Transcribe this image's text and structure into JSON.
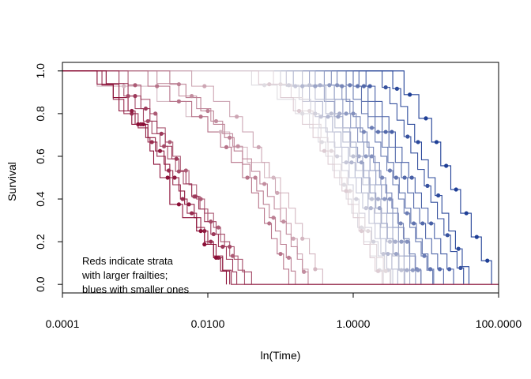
{
  "chart_data": {
    "type": "line",
    "xlabel": "ln(Time)",
    "ylabel": "Survival",
    "x_scale": "log10",
    "xlim": [
      0.0001,
      100
    ],
    "ylim": [
      0,
      1
    ],
    "x_ticks": [
      "0.0001",
      "0.0100",
      "1.0000",
      "100.0000"
    ],
    "y_ticks": [
      "0.0",
      "0.2",
      "0.4",
      "0.6",
      "0.8",
      "1.0"
    ],
    "annotation_lines": [
      "Reds indicate strata",
      "with larger frailties;",
      "blues with smaller ones"
    ],
    "grid": false,
    "legend": "none",
    "color_scale": {
      "low_frailty": "#1f3f96",
      "mid": "#e6e1e4",
      "high_frailty": "#8b0f37"
    },
    "series": [
      {
        "frailty": 1.0,
        "times": [
          0.0003,
          0.0005,
          0.0006,
          0.0009,
          0.0015,
          0.0016,
          0.0018,
          0.0022,
          0.003,
          0.003,
          0.0045,
          0.007,
          0.009,
          0.012,
          0.015,
          0.018
        ],
        "censored": [
          0.0011,
          0.0013,
          0.0028,
          0.004,
          0.008,
          0.009,
          0.013,
          0.02
        ]
      },
      {
        "frailty": 0.97,
        "times": [
          0.0004,
          0.0006,
          0.0008,
          0.001,
          0.0014,
          0.0019,
          0.0025,
          0.003,
          0.004,
          0.0048,
          0.0065,
          0.008,
          0.01,
          0.013,
          0.016,
          0.02
        ],
        "censored": [
          0.0009,
          0.0012,
          0.0022,
          0.0035,
          0.0055,
          0.009,
          0.014
        ]
      },
      {
        "frailty": 0.93,
        "times": [
          0.00035,
          0.0005,
          0.0007,
          0.0011,
          0.0015,
          0.002,
          0.0026,
          0.0033,
          0.0042,
          0.0052,
          0.007,
          0.009,
          0.012,
          0.016,
          0.021
        ],
        "censored": [
          0.0009,
          0.0017,
          0.0029,
          0.0045,
          0.006,
          0.011
        ]
      },
      {
        "frailty": 0.9,
        "times": [
          0.0006,
          0.0008,
          0.0012,
          0.0016,
          0.002,
          0.0026,
          0.0032,
          0.004,
          0.005,
          0.006,
          0.0075,
          0.009,
          0.011,
          0.014,
          0.018,
          0.022,
          0.025
        ],
        "censored": [
          0.001,
          0.0014,
          0.0023,
          0.0037,
          0.0068,
          0.012,
          0.016
        ]
      },
      {
        "frailty": 0.86,
        "times": [
          0.0004,
          0.0007,
          0.001,
          0.0013,
          0.0017,
          0.0022,
          0.0028,
          0.0036,
          0.0046,
          0.006,
          0.0078,
          0.01,
          0.013,
          0.017,
          0.023,
          0.03,
          0.04
        ],
        "censored": [
          0.0008,
          0.0015,
          0.0025,
          0.004,
          0.0065,
          0.011,
          0.02,
          0.05
        ]
      },
      {
        "frailty": 0.82,
        "times": [
          0.0008,
          0.0012,
          0.0016,
          0.002,
          0.0026,
          0.0033,
          0.0042,
          0.0055,
          0.007,
          0.009,
          0.012,
          0.015,
          0.02,
          0.026,
          0.032
        ],
        "censored": [
          0.001,
          0.0019,
          0.003,
          0.005,
          0.008,
          0.014,
          0.022
        ]
      },
      {
        "frailty": 0.76,
        "times": [
          0.0015,
          0.003,
          0.006,
          0.01,
          0.015,
          0.021,
          0.03,
          0.04,
          0.05,
          0.06,
          0.075,
          0.09,
          0.11,
          0.13
        ],
        "censored": [
          0.002,
          0.004,
          0.008,
          0.018,
          0.035,
          0.07,
          0.1
        ]
      },
      {
        "frailty": 0.73,
        "times": [
          0.003,
          0.005,
          0.008,
          0.012,
          0.017,
          0.023,
          0.03,
          0.038,
          0.047,
          0.058,
          0.07,
          0.085,
          0.1,
          0.12,
          0.14,
          0.16
        ],
        "censored": [
          0.004,
          0.01,
          0.02,
          0.045,
          0.08,
          0.13
        ]
      },
      {
        "frailty": 0.7,
        "times": [
          0.002,
          0.004,
          0.007,
          0.011,
          0.016,
          0.022,
          0.03,
          0.04,
          0.052,
          0.066,
          0.082,
          0.1,
          0.12,
          0.14,
          0.17,
          0.2,
          0.24
        ],
        "censored": [
          0.006,
          0.013,
          0.026,
          0.06,
          0.11,
          0.21
        ]
      },
      {
        "frailty": 0.64,
        "times": [
          0.006,
          0.012,
          0.02,
          0.03,
          0.042,
          0.055,
          0.07,
          0.085,
          0.1,
          0.12,
          0.14,
          0.17,
          0.2,
          0.24
        ],
        "censored": [
          0.009,
          0.025,
          0.05,
          0.09,
          0.15
        ]
      },
      {
        "frailty": 0.6,
        "times": [
          0.0003,
          0.002,
          0.005,
          0.01,
          0.02,
          0.035,
          0.06,
          0.1,
          0.13,
          0.16,
          0.2,
          0.25,
          0.3,
          0.38
        ],
        "censored": [
          0.0007,
          0.004,
          0.015,
          0.08,
          0.2,
          0.3
        ]
      },
      {
        "frailty": 0.55,
        "times": [
          0.05,
          0.1,
          0.15,
          0.2,
          0.28,
          0.35,
          0.45,
          0.55,
          0.7,
          0.85,
          1.0,
          1.2,
          1.4,
          1.7,
          2.0,
          2.5
        ],
        "censored": [
          0.07,
          0.18,
          0.4,
          0.8,
          1.3,
          2.2
        ]
      },
      {
        "frailty": 0.52,
        "times": [
          0.08,
          0.14,
          0.2,
          0.28,
          0.36,
          0.45,
          0.55,
          0.68,
          0.82,
          1.0,
          1.2,
          1.45,
          1.75,
          2.1,
          2.6,
          3.2
        ],
        "censored": [
          0.1,
          0.25,
          0.5,
          0.9,
          1.6,
          2.8
        ]
      },
      {
        "frailty": 0.48,
        "times": [
          0.04,
          0.09,
          0.16,
          0.25,
          0.33,
          0.42,
          0.52,
          0.65,
          0.8,
          0.95,
          1.15,
          1.4,
          1.7,
          2.1,
          2.6
        ],
        "censored": [
          0.06,
          0.2,
          0.37,
          0.75,
          1.3,
          2.3
        ]
      },
      {
        "frailty": 0.45,
        "times": [
          0.1,
          0.18,
          0.26,
          0.34,
          0.44,
          0.56,
          0.7,
          0.85,
          1.0,
          1.2,
          1.45,
          1.8,
          2.2,
          2.7,
          3.3
        ],
        "censored": [
          0.13,
          0.3,
          0.6,
          1.1,
          1.9,
          3.0
        ]
      },
      {
        "frailty": 0.42,
        "times": [
          0.12,
          0.2,
          0.3,
          0.42,
          0.55,
          0.7,
          0.88,
          1.1,
          1.35,
          1.65,
          2.0,
          2.4,
          2.9,
          3.5
        ],
        "censored": [
          0.16,
          0.36,
          0.8,
          1.5,
          2.6
        ]
      },
      {
        "frailty": 0.4,
        "times": [
          0.2,
          0.3,
          0.42,
          0.56,
          0.72,
          0.9,
          1.1,
          1.35,
          1.65,
          2.0,
          2.4,
          2.9,
          3.5,
          4.2,
          5.0
        ],
        "censored": [
          0.25,
          0.5,
          1.0,
          1.8,
          3.2,
          4.6
        ]
      },
      {
        "frailty": 0.37,
        "times": [
          0.15,
          0.25,
          0.38,
          0.52,
          0.68,
          0.86,
          1.06,
          1.3,
          1.6,
          1.95,
          2.35,
          2.8,
          3.4,
          4.1
        ],
        "censored": [
          0.2,
          0.45,
          0.95,
          1.75,
          3.0
        ]
      },
      {
        "frailty": 0.34,
        "times": [
          0.3,
          0.42,
          0.56,
          0.72,
          0.9,
          1.1,
          1.35,
          1.65,
          2.0,
          2.4,
          2.9,
          3.5,
          4.2,
          5.0,
          6.0
        ],
        "censored": [
          0.35,
          0.65,
          1.2,
          2.2,
          3.8,
          5.5
        ]
      },
      {
        "frailty": 0.31,
        "times": [
          0.25,
          0.4,
          0.55,
          0.72,
          0.92,
          1.15,
          1.4,
          1.7,
          2.05,
          2.45,
          2.95,
          3.55,
          4.25,
          5.1
        ],
        "censored": [
          0.3,
          0.62,
          1.3,
          2.3,
          3.9
        ]
      },
      {
        "frailty": 0.28,
        "times": [
          0.4,
          0.55,
          0.72,
          0.92,
          1.15,
          1.4,
          1.7,
          2.05,
          2.45,
          2.95,
          3.5,
          4.2,
          5.0,
          6.0,
          7.2
        ],
        "censored": [
          0.47,
          0.8,
          1.5,
          2.7,
          4.6,
          6.6
        ]
      },
      {
        "frailty": 0.25,
        "times": [
          0.5,
          0.7,
          0.9,
          1.1,
          1.35,
          1.65,
          2.0,
          2.4,
          2.9,
          3.5,
          4.2,
          5.0,
          6.0,
          7.2,
          8.6
        ],
        "censored": [
          0.6,
          1.0,
          1.8,
          3.2,
          5.5,
          7.8
        ]
      },
      {
        "frailty": 0.22,
        "times": [
          0.6,
          0.8,
          1.0,
          1.25,
          1.55,
          1.9,
          2.3,
          2.8,
          3.4,
          4.1,
          4.9,
          5.9,
          7.1,
          8.5
        ],
        "censored": [
          0.7,
          1.4,
          2.5,
          4.5,
          7.5
        ]
      },
      {
        "frailty": 0.19,
        "times": [
          0.8,
          1.0,
          1.3,
          1.6,
          2.0,
          2.4,
          2.9,
          3.5,
          4.2,
          5.0,
          6.0,
          7.2,
          8.6,
          10.3,
          12.4
        ],
        "censored": [
          0.9,
          1.8,
          3.2,
          5.5,
          9.5,
          13.5
        ]
      },
      {
        "frailty": 0.16,
        "times": [
          1.0,
          1.3,
          1.6,
          2.0,
          2.5,
          3.0,
          3.6,
          4.3,
          5.2,
          6.2,
          7.4,
          8.9,
          10.7,
          12.8
        ],
        "censored": [
          1.15,
          2.2,
          3.9,
          6.8,
          11.5
        ]
      },
      {
        "frailty": 0.13,
        "times": [
          1.2,
          1.6,
          2.0,
          2.5,
          3.1,
          3.8,
          4.6,
          5.6,
          6.8,
          8.2,
          9.9,
          12.0,
          14.5,
          17.5
        ],
        "censored": [
          1.4,
          2.8,
          5.1,
          9.0,
          15.5
        ]
      },
      {
        "frailty": 0.1,
        "times": [
          1.5,
          2.0,
          2.5,
          3.1,
          3.8,
          4.7,
          5.8,
          7.1,
          8.7,
          10.7,
          13.1,
          16.0,
          19.5,
          24.0
        ],
        "censored": [
          1.7,
          3.4,
          6.4,
          11.8,
          21.0
        ]
      },
      {
        "frailty": 0.06,
        "times": [
          2.5,
          3.2,
          4.0,
          5.0,
          6.2,
          7.7,
          9.5,
          11.7,
          14.4,
          17.7,
          21.8,
          26.8,
          33.0
        ],
        "censored": [
          2.8,
          5.6,
          10.5,
          19.8,
          30.0
        ]
      },
      {
        "frailty": 0.03,
        "times": [
          3.5,
          4.5,
          5.6,
          7.0,
          8.7,
          10.8,
          13.4,
          16.6,
          20.6,
          25.5,
          31.6,
          39.1
        ],
        "censored": [
          4.0,
          7.8,
          14.8,
          28.0
        ]
      },
      {
        "frailty": 0.0,
        "times": [
          5.0,
          8.0,
          12.0,
          16.0,
          22.0,
          30.0,
          42.0,
          58.0,
          80.0
        ],
        "censored": [
          6.0,
          10.0,
          14.0,
          19.0,
          26.0,
          36.0,
          50.0,
          70.0,
          85.0
        ]
      }
    ]
  }
}
